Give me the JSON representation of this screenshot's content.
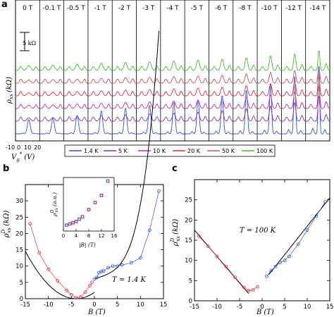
{
  "chart_data": [
    {
      "id": "a",
      "panel_label": "a",
      "type": "line",
      "ylabel": "ρ_xx (kΩ)",
      "ylabel_main": "ρ",
      "ylabel_sub": "xx",
      "ylabel_unit": "(kΩ)",
      "xlabel_main": "V",
      "xlabel_sub": "g",
      "xlabel_sup": "*",
      "xlabel_unit": "(V)",
      "x_ticks": [
        "-10",
        "0",
        "10",
        "20"
      ],
      "scale_bar_label": "5 kΩ",
      "fields": [
        "0 T",
        "-0.1 T",
        "-0.5 T",
        "-1 T",
        "-2 T",
        "-3 T",
        "-4 T",
        "-5 T",
        "-6 T",
        "-8 T",
        "-10 T",
        "-12 T",
        "-14 T"
      ],
      "peak_heights": [
        0.14,
        0.16,
        0.2,
        0.26,
        0.3,
        0.34,
        0.38,
        0.42,
        0.48,
        0.56,
        0.66,
        0.78,
        1.0
      ],
      "series": [
        {
          "name": "1.4 K",
          "color": "#3355cc"
        },
        {
          "name": "5 K",
          "color": "#7a3ba8"
        },
        {
          "name": "10 K",
          "color": "#c22aa8"
        },
        {
          "name": "20 K",
          "color": "#dd3340"
        },
        {
          "name": "50 K",
          "color": "#cc5060"
        },
        {
          "name": "100 K",
          "color": "#44bb33"
        }
      ]
    },
    {
      "id": "b",
      "panel_label": "b",
      "type": "scatter",
      "ylabel_main": "ρ",
      "ylabel_sub": "xx",
      "ylabel_sup": "D",
      "ylabel_unit": "(kΩ)",
      "xlabel_main": "B",
      "xlabel_unit": "(T)",
      "annotation": "T = 1.4 K",
      "xlim": [
        -15,
        15
      ],
      "ylim": [
        0,
        35
      ],
      "x_ticks": [
        "-15",
        "-10",
        "-5",
        "0",
        "5",
        "10",
        "15"
      ],
      "y_ticks": [
        "0",
        "5",
        "10",
        "15",
        "20",
        "25",
        "30"
      ],
      "negative_B_points": [
        [
          -14,
          23
        ],
        [
          -12,
          14
        ],
        [
          -10,
          9
        ],
        [
          -8,
          5.5
        ],
        [
          -6,
          2.5
        ],
        [
          -5,
          1.2
        ],
        [
          -4,
          0.3
        ],
        [
          -3,
          0.5
        ],
        [
          -2,
          2
        ],
        [
          -1,
          4
        ],
        [
          -0.5,
          5
        ]
      ],
      "positive_B_points": [
        [
          0,
          6
        ],
        [
          0.5,
          6.5
        ],
        [
          1,
          8
        ],
        [
          1.5,
          8.3
        ],
        [
          2,
          8.5
        ],
        [
          3,
          9.5
        ],
        [
          4,
          10
        ],
        [
          5,
          10
        ],
        [
          6,
          10.3
        ],
        [
          8,
          11
        ],
        [
          10,
          12.5
        ],
        [
          12,
          21
        ],
        [
          14,
          33
        ]
      ],
      "inset": {
        "ylabel_main": "ρ",
        "ylabel_sub": "xx",
        "ylabel_sup": "D",
        "ylabel_unit": "(a.u.)",
        "xlabel": "|B| (T)",
        "x_ticks": [
          "0",
          "4",
          "8",
          "12",
          "16"
        ],
        "points": [
          [
            1,
            0.5
          ],
          [
            2,
            0.6
          ],
          [
            3,
            0.7
          ],
          [
            4,
            0.8
          ],
          [
            5,
            1.0
          ],
          [
            6,
            1.2
          ],
          [
            8,
            1.8
          ],
          [
            10,
            2.4
          ],
          [
            12,
            3.0
          ],
          [
            14,
            4.2
          ]
        ]
      }
    },
    {
      "id": "c",
      "panel_label": "c",
      "type": "scatter",
      "ylabel_main": "ρ",
      "ylabel_sub": "xx",
      "ylabel_sup": "D",
      "ylabel_unit": "(kΩ)",
      "xlabel_main": "B",
      "xlabel_unit": "(T)",
      "annotation": "T = 100 K",
      "xlim": [
        -15,
        15
      ],
      "ylim": [
        0,
        30
      ],
      "x_ticks": [
        "-15",
        "-10",
        "-5",
        "0",
        "5",
        "10",
        "15"
      ],
      "y_ticks": [
        "0",
        "5",
        "10",
        "15",
        "20",
        "25"
      ],
      "negative_B_points": [
        [
          -14,
          16
        ],
        [
          -12,
          13.5
        ],
        [
          -10,
          11
        ],
        [
          -8,
          8.5
        ],
        [
          -6,
          5.8
        ],
        [
          -4,
          3.3
        ],
        [
          -3,
          2.5
        ],
        [
          -2,
          2.7
        ],
        [
          -1,
          3.5
        ]
      ],
      "positive_B_points": [
        [
          1,
          6
        ],
        [
          2,
          7.5
        ],
        [
          3,
          8.5
        ],
        [
          4,
          9.5
        ],
        [
          5,
          10
        ],
        [
          6,
          11
        ],
        [
          8,
          14
        ],
        [
          10,
          17.5
        ],
        [
          12,
          21
        ],
        [
          14,
          24.5
        ]
      ]
    }
  ]
}
